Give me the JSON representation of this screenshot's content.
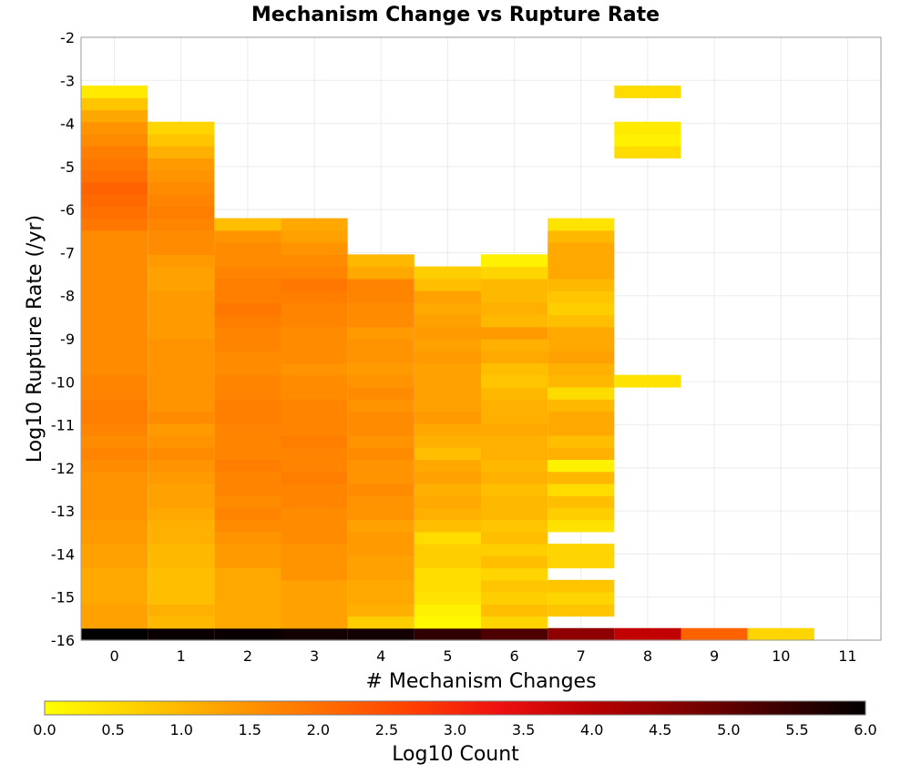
{
  "chart_data": {
    "type": "heatmap",
    "title": "Mechanism Change vs Rupture Rate",
    "xlabel": "# Mechanism Changes",
    "ylabel": "Log10 Rupture Rate (/yr)",
    "xlim": [
      -0.5,
      11.5
    ],
    "ylim": [
      -16,
      -2
    ],
    "x_ticks": [
      0,
      1,
      2,
      3,
      4,
      5,
      6,
      7,
      8,
      9,
      10,
      11
    ],
    "y_ticks": [
      -2,
      -3,
      -4,
      -5,
      -6,
      -7,
      -8,
      -9,
      -10,
      -11,
      -12,
      -13,
      -14,
      -15,
      -16
    ],
    "grid": true,
    "y_bin_width": 0.28,
    "y_bin_start": -16.0,
    "colorbar": {
      "label": "Log10 Count",
      "range": [
        0.0,
        6.0
      ],
      "ticks": [
        "0.0",
        "0.5",
        "1.0",
        "1.5",
        "2.0",
        "2.5",
        "3.0",
        "3.5",
        "4.0",
        "4.5",
        "5.0",
        "5.5",
        "6.0"
      ],
      "placement": "bottom",
      "colors": [
        "#ffff00",
        "#ffd000",
        "#ff9f00",
        "#ff7000",
        "#ff4000",
        "#ee1010",
        "#b80000",
        "#800000",
        "#400000",
        "#000000"
      ]
    },
    "columns": [
      {
        "x": 0,
        "values": [
          6.0,
          1.3,
          1.3,
          1.2,
          1.2,
          1.2,
          1.3,
          1.3,
          1.4,
          1.4,
          1.5,
          1.5,
          1.5,
          1.5,
          1.6,
          1.7,
          1.6,
          1.7,
          1.8,
          1.8,
          1.7,
          1.7,
          1.6,
          1.6,
          1.6,
          1.6,
          1.6,
          1.6,
          1.6,
          1.6,
          1.6,
          1.6,
          1.6,
          1.6,
          1.9,
          2.0,
          2.1,
          2.2,
          2.0,
          1.9,
          1.8,
          1.6,
          1.5,
          1.2,
          0.8,
          0.3
        ]
      },
      {
        "x": 1,
        "values": [
          5.9,
          1.0,
          1.1,
          0.9,
          0.9,
          0.9,
          1.0,
          1.0,
          1.1,
          1.1,
          1.2,
          1.3,
          1.3,
          1.4,
          1.5,
          1.6,
          1.5,
          1.4,
          1.6,
          1.5,
          1.5,
          1.5,
          1.5,
          1.5,
          1.5,
          1.4,
          1.4,
          1.4,
          1.4,
          1.3,
          1.3,
          1.4,
          1.6,
          1.6,
          1.7,
          1.8,
          1.7,
          1.6,
          1.5,
          1.4,
          1.1,
          0.8,
          0.6
        ]
      },
      {
        "x": 2,
        "values": [
          5.9,
          1.2,
          1.2,
          1.2,
          1.2,
          1.2,
          1.4,
          1.4,
          1.5,
          1.6,
          1.7,
          1.6,
          1.7,
          1.7,
          1.8,
          1.7,
          1.7,
          1.7,
          1.8,
          1.8,
          1.7,
          1.7,
          1.6,
          1.6,
          1.7,
          1.7,
          1.8,
          1.9,
          1.8,
          1.8,
          1.7,
          1.6,
          1.6,
          1.5,
          0.9
        ]
      },
      {
        "x": 3,
        "values": [
          5.8,
          1.3,
          1.3,
          1.3,
          1.3,
          1.5,
          1.5,
          1.5,
          1.6,
          1.6,
          1.6,
          1.7,
          1.7,
          1.8,
          1.7,
          1.7,
          1.8,
          1.7,
          1.7,
          1.7,
          1.6,
          1.6,
          1.5,
          1.6,
          1.6,
          1.6,
          1.7,
          1.7,
          1.8,
          1.9,
          1.7,
          1.6,
          1.5,
          1.3,
          1.2
        ]
      },
      {
        "x": 4,
        "values": [
          5.8,
          0.7,
          1.1,
          1.2,
          1.2,
          1.3,
          1.3,
          1.4,
          1.4,
          1.3,
          1.5,
          1.5,
          1.6,
          1.5,
          1.5,
          1.6,
          1.5,
          1.6,
          1.6,
          1.5,
          1.6,
          1.5,
          1.4,
          1.5,
          1.5,
          1.4,
          1.6,
          1.6,
          1.7,
          1.7,
          1.2,
          1.0
        ]
      },
      {
        "x": 5,
        "values": [
          5.5,
          0.1,
          0.2,
          0.4,
          0.5,
          0.5,
          0.7,
          0.7,
          0.5,
          0.9,
          1.1,
          1.2,
          1.1,
          1.3,
          1.2,
          0.9,
          1.1,
          1.2,
          1.4,
          1.3,
          1.3,
          1.3,
          1.3,
          1.4,
          1.3,
          1.4,
          1.3,
          1.2,
          1.3,
          0.9,
          0.7
        ]
      },
      {
        "x": 6,
        "values": [
          5.2,
          0.6,
          0.9,
          0.7,
          0.8,
          0.6,
          0.9,
          0.7,
          0.9,
          0.8,
          1.0,
          1.0,
          0.9,
          1.1,
          1.0,
          1.1,
          1.1,
          1.2,
          1.1,
          1.1,
          1.0,
          0.8,
          0.9,
          1.2,
          1.1,
          1.4,
          1.0,
          1.1,
          1.0,
          1.0,
          0.6,
          0.2
        ]
      },
      {
        "x": 7,
        "values": [
          4.5,
          null,
          0.8,
          0.6,
          0.8,
          null,
          0.6,
          0.6,
          null,
          0.4,
          0.7,
          0.9,
          0.5,
          1.0,
          0.2,
          1.1,
          0.9,
          1.2,
          1.2,
          1.0,
          0.5,
          1.0,
          1.1,
          1.3,
          1.2,
          1.2,
          0.9,
          0.7,
          0.8,
          1.0,
          1.2,
          1.2,
          1.2,
          1.0,
          0.4
        ]
      },
      {
        "x": 8,
        "values": [
          3.9,
          null,
          null,
          null,
          null,
          null,
          null,
          null,
          null,
          null,
          null,
          null,
          null,
          null,
          null,
          null,
          null,
          null,
          null,
          null,
          null,
          0.4,
          null,
          null,
          null,
          null,
          null,
          null,
          null,
          null,
          null,
          null,
          null,
          null,
          null,
          null,
          null,
          null,
          null,
          null,
          0.5,
          0.2,
          0.3,
          null,
          null,
          0.5
        ]
      },
      {
        "x": 9,
        "values": [
          2.2
        ]
      },
      {
        "x": 10,
        "values": [
          0.6
        ]
      }
    ]
  }
}
